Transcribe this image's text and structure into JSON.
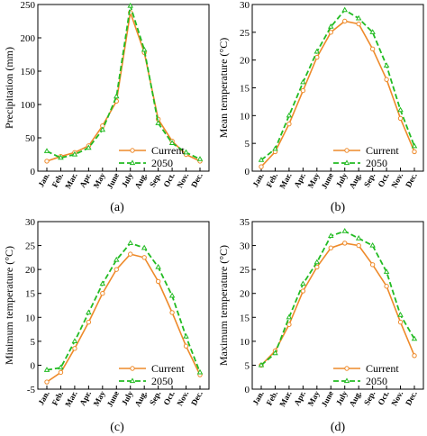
{
  "months": [
    "Jan.",
    "Feb.",
    "Mar.",
    "Apr.",
    "May",
    "June",
    "July",
    "Aug.",
    "Sep.",
    "Oct.",
    "Nov.",
    "Dec."
  ],
  "colors": {
    "current": "#ee8a2a",
    "future": "#22bb22",
    "frame": "#000000"
  },
  "chart_data": [
    {
      "type": "line",
      "panel_label": "(a)",
      "ylabel": "Precipitation (mm)",
      "ylim": [
        0,
        250
      ],
      "yticks": [
        0,
        50,
        100,
        150,
        200,
        250
      ],
      "legend": "bottom-right",
      "x": [
        "Jan.",
        "Feb.",
        "Mar.",
        "Apr.",
        "May",
        "June",
        "July",
        "Aug.",
        "Sep.",
        "Oct.",
        "Nov.",
        "Dec."
      ],
      "series": [
        {
          "name": "Current",
          "marker": "circle",
          "values": [
            15,
            22,
            28,
            38,
            68,
            105,
            238,
            178,
            78,
            45,
            25,
            15
          ]
        },
        {
          "name": "2050",
          "marker": "triangle",
          "values": [
            30,
            20,
            25,
            35,
            62,
            112,
            248,
            182,
            72,
            42,
            28,
            18
          ]
        }
      ]
    },
    {
      "type": "line",
      "panel_label": "(b)",
      "ylabel": "Mean temperature (°C)",
      "ylim": [
        0,
        30
      ],
      "yticks": [
        0,
        5,
        10,
        15,
        20,
        25,
        30
      ],
      "legend": "bottom-right",
      "x": [
        "Jan.",
        "Feb.",
        "Mar.",
        "Apr.",
        "May",
        "June",
        "July",
        "Aug.",
        "Sep.",
        "Oct.",
        "Nov.",
        "Dec."
      ],
      "series": [
        {
          "name": "Current",
          "marker": "circle",
          "values": [
            0.8,
            3.5,
            8.5,
            14.5,
            20.5,
            25,
            27,
            26.5,
            22,
            16.5,
            9.5,
            3.5
          ]
        },
        {
          "name": "2050",
          "marker": "triangle",
          "values": [
            2,
            4,
            10,
            16,
            21.5,
            26,
            29,
            27.5,
            25,
            19,
            11,
            4.5
          ]
        }
      ]
    },
    {
      "type": "line",
      "panel_label": "(c)",
      "ylabel": "Minimum temperature (°C)",
      "ylim": [
        -5,
        30
      ],
      "yticks": [
        -5,
        0,
        5,
        10,
        15,
        20,
        25,
        30
      ],
      "legend": "bottom-right",
      "x": [
        "Jan.",
        "Feb.",
        "Mar.",
        "Apr.",
        "May",
        "June",
        "July",
        "Aug.",
        "Sep.",
        "Oct.",
        "Nov.",
        "Dec."
      ],
      "series": [
        {
          "name": "Current",
          "marker": "circle",
          "values": [
            -3.5,
            -1.5,
            3.5,
            9,
            15,
            20,
            23.2,
            22.5,
            17.5,
            11,
            4,
            -2
          ]
        },
        {
          "name": "2050",
          "marker": "triangle",
          "values": [
            -1,
            -0.5,
            5,
            11,
            17,
            22,
            25.5,
            24.5,
            20.5,
            14.5,
            6,
            -1.5
          ]
        }
      ]
    },
    {
      "type": "line",
      "panel_label": "(d)",
      "ylabel": "Maximum temperature (°C)",
      "ylim": [
        0,
        35
      ],
      "yticks": [
        0,
        5,
        10,
        15,
        20,
        25,
        30,
        35
      ],
      "legend": "bottom-right",
      "x": [
        "Jan.",
        "Feb.",
        "Mar.",
        "Apr.",
        "May",
        "June",
        "July",
        "Aug.",
        "Sep.",
        "Oct.",
        "Nov.",
        "Dec."
      ],
      "series": [
        {
          "name": "Current",
          "marker": "circle",
          "values": [
            5,
            8,
            13.5,
            20.5,
            25.5,
            29.5,
            30.5,
            30,
            26,
            21.5,
            14,
            7
          ]
        },
        {
          "name": "2050",
          "marker": "triangle",
          "values": [
            5,
            7.5,
            15,
            22,
            26.5,
            32,
            33,
            31.5,
            30,
            24.5,
            15.5,
            10.5
          ]
        }
      ]
    }
  ]
}
